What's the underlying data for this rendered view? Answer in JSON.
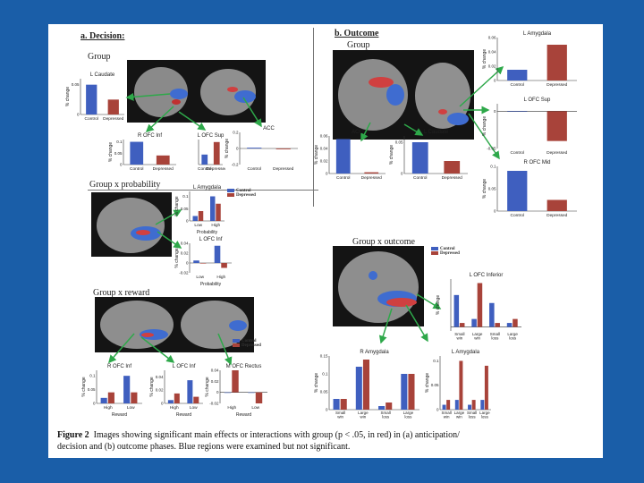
{
  "headings": {
    "a": "a. Decision:",
    "b": "b. Outcome"
  },
  "labels": {
    "group_a": "Group",
    "group_b": "Group",
    "gxp": "Group x probability",
    "gxr": "Group x reward",
    "gxo": "Group x outcome"
  },
  "legend": {
    "control": "Control",
    "depressed": "Depressed"
  },
  "colors": {
    "control": "#3f5fbf",
    "depressed": "#a8433a",
    "background": "#1a5ea8"
  },
  "caption": {
    "figure": "Figure 2",
    "line1": "Images showing significant main effects or interactions with group (p < .05, in red) in (a) anticipation/",
    "line2": "decision and (b) outcome phases. Blue regions were examined but not significant."
  },
  "chart_data": [
    {
      "id": "a_caudate",
      "type": "bar",
      "title": "L Caudate",
      "ylabel": "% change",
      "ticks": [
        "0.05",
        "0"
      ],
      "categories": [
        "Control",
        "Depressed"
      ],
      "values": [
        0.05,
        0.025
      ],
      "ylim": [
        0,
        0.06
      ]
    },
    {
      "id": "a_rofc_inf",
      "type": "bar",
      "title": "R OFC Inf",
      "ylabel": "% change",
      "ticks": [
        "0.1",
        "0.05",
        "0"
      ],
      "categories": [
        "Control",
        "Depressed"
      ],
      "values": [
        0.1,
        0.04
      ],
      "ylim": [
        0,
        0.11
      ]
    },
    {
      "id": "a_lofc_sup",
      "type": "bar",
      "title": "L OFC Sup",
      "ylabel": "",
      "ticks": [],
      "categories": [
        "Control",
        "Depressed"
      ],
      "values": [
        0.04,
        0.09
      ],
      "ylim": [
        0,
        0.1
      ]
    },
    {
      "id": "a_acc",
      "type": "bar",
      "title": "ACC",
      "ylabel": "% change",
      "ticks": [
        "0.2",
        "0",
        "-0.2"
      ],
      "categories": [
        "Control",
        "Depressed"
      ],
      "values": [
        0.01,
        -0.01
      ],
      "ylim": [
        -0.2,
        0.2
      ]
    },
    {
      "id": "a_amyg_prob",
      "type": "bar",
      "title": "L Amygdala",
      "ylabel": "% change",
      "ticks": [
        "0.1",
        "0.05",
        "0"
      ],
      "xlabel": "Probability",
      "categories": [
        "Low",
        "High"
      ],
      "series": [
        {
          "name": "Control",
          "values": [
            0.02,
            0.1
          ]
        },
        {
          "name": "Depressed",
          "values": [
            0.04,
            0.07
          ]
        }
      ],
      "ylim": [
        0,
        0.12
      ]
    },
    {
      "id": "a_lofc_inf_prob",
      "type": "bar",
      "title": "L OFC Inf",
      "ylabel": "% change",
      "ticks": [
        "0.04",
        "0.02",
        "0",
        "-0.02"
      ],
      "xlabel": "Probability",
      "categories": [
        "Low",
        "High"
      ],
      "series": [
        {
          "name": "Control",
          "values": [
            0.005,
            0.035
          ]
        },
        {
          "name": "Depressed",
          "values": [
            0.0,
            -0.01
          ]
        }
      ],
      "ylim": [
        -0.02,
        0.04
      ]
    },
    {
      "id": "a_rofc_inf_rew",
      "type": "bar",
      "title": "R OFC Inf",
      "ylabel": "% change",
      "ticks": [
        "0.1",
        "0.05",
        "0"
      ],
      "xlabel": "Reward",
      "categories": [
        "High",
        "Low"
      ],
      "series": [
        {
          "name": "Control",
          "values": [
            0.02,
            0.1
          ]
        },
        {
          "name": "Depressed",
          "values": [
            0.04,
            0.04
          ]
        }
      ],
      "ylim": [
        0,
        0.12
      ]
    },
    {
      "id": "a_lofc_inf_rew",
      "type": "bar",
      "title": "L OFC Inf",
      "ylabel": "% change",
      "ticks": [
        "0.04",
        "0.02",
        "0"
      ],
      "xlabel": "Reward",
      "categories": [
        "High",
        "Low"
      ],
      "series": [
        {
          "name": "Control",
          "values": [
            0.005,
            0.035
          ]
        },
        {
          "name": "Depressed",
          "values": [
            0.015,
            0.01
          ]
        }
      ],
      "ylim": [
        0,
        0.05
      ]
    },
    {
      "id": "a_mofc_rectus",
      "type": "bar",
      "title": "M OFC Rectus",
      "ylabel": "% change",
      "ticks": [
        "0.04",
        "0.02",
        "0",
        "-0.02"
      ],
      "xlabel": "Reward",
      "categories": [
        "High",
        "Low"
      ],
      "series": [
        {
          "name": "Control",
          "values": [
            0.0,
            0.0
          ]
        },
        {
          "name": "Depressed",
          "values": [
            0.04,
            -0.02
          ]
        }
      ],
      "ylim": [
        -0.02,
        0.04
      ]
    },
    {
      "id": "b_amygdala",
      "type": "bar",
      "title": "L Amygdala",
      "ylabel": "% change",
      "ticks": [
        "0.06",
        "0.04",
        "0.02",
        "0"
      ],
      "categories": [
        "Control",
        "Depressed"
      ],
      "values": [
        0.015,
        0.05
      ],
      "ylim": [
        0,
        0.06
      ]
    },
    {
      "id": "b_ofc_sup",
      "type": "bar",
      "title": "L OFC Sup",
      "ylabel": "% change",
      "ticks": [
        "0",
        "-0.05"
      ],
      "categories": [
        "Control",
        "Depressed"
      ],
      "values": [
        0.0,
        -0.04
      ],
      "ylim": [
        -0.05,
        0.01
      ]
    },
    {
      "id": "b_acc",
      "type": "bar",
      "title": "ACC",
      "ylabel": "% change",
      "ticks": [
        "0.06",
        "0.04",
        "0.02",
        "0"
      ],
      "categories": [
        "Control",
        "Depressed"
      ],
      "values": [
        0.055,
        0.002
      ],
      "ylim": [
        0,
        0.06
      ]
    },
    {
      "id": "b_caudate",
      "type": "bar",
      "title": "L Caudate",
      "ylabel": "% change",
      "ticks": [
        "0.05",
        "0"
      ],
      "categories": [
        "Control",
        "Depressed"
      ],
      "values": [
        0.05,
        0.02
      ],
      "ylim": [
        0,
        0.06
      ]
    },
    {
      "id": "b_rofc_mid",
      "type": "bar",
      "title": "R OFC Mid",
      "ylabel": "% change",
      "ticks": [
        "0.1",
        "0.05",
        "0"
      ],
      "categories": [
        "Control",
        "Depressed"
      ],
      "values": [
        0.09,
        0.025
      ],
      "ylim": [
        0,
        0.1
      ]
    },
    {
      "id": "b_lofc_inferior",
      "type": "bar",
      "title": "L OFC Inferior",
      "ylabel": "% change",
      "ticks": [],
      "categories": [
        "Small win",
        "Large win",
        "Small loss",
        "Large loss"
      ],
      "series": [
        {
          "name": "Control",
          "values": [
            0.08,
            0.02,
            0.06,
            0.01
          ]
        },
        {
          "name": "Depressed",
          "values": [
            0.01,
            0.11,
            0.01,
            0.02
          ]
        }
      ],
      "ylim": [
        -0.01,
        0.12
      ]
    },
    {
      "id": "b_ramygdala",
      "type": "bar",
      "title": "R Amygdala",
      "ylabel": "% change",
      "ticks": [
        "0.15",
        "0.1",
        "0.05",
        "0"
      ],
      "categories": [
        "Small win",
        "Large win",
        "Small loss",
        "Large loss"
      ],
      "series": [
        {
          "name": "Control",
          "values": [
            0.03,
            0.12,
            0.01,
            0.1
          ]
        },
        {
          "name": "Depressed",
          "values": [
            0.03,
            0.14,
            0.02,
            0.1
          ]
        }
      ],
      "ylim": [
        0,
        0.15
      ]
    },
    {
      "id": "b_lamygdala",
      "type": "bar",
      "title": "L Amygdala",
      "ylabel": "% change",
      "ticks": [
        "0.1",
        "0.05",
        "0"
      ],
      "categories": [
        "Small win",
        "Large win",
        "Small loss",
        "Large loss"
      ],
      "series": [
        {
          "name": "Control",
          "values": [
            0.01,
            0.02,
            0.01,
            0.02
          ]
        },
        {
          "name": "Depressed",
          "values": [
            0.02,
            0.1,
            0.02,
            0.09
          ]
        }
      ],
      "ylim": [
        0,
        0.11
      ]
    }
  ]
}
